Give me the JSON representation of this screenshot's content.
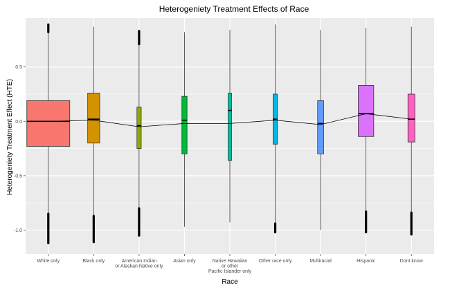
{
  "chart_data": {
    "type": "box",
    "title": "Heterogeniety Treatment Effects of Race",
    "xlabel": "Race",
    "ylabel": "Heterogeniety Treatment Effect (HTE)",
    "ylim": [
      -1.22,
      0.95
    ],
    "yticks": [
      0.5,
      0.0,
      -0.5,
      -1.0
    ],
    "ytick_labels": [
      "0.5",
      "0.0",
      "-0.5",
      "-1.0"
    ],
    "grid": true,
    "categories": [
      [
        "White only"
      ],
      [
        "Black only"
      ],
      [
        "American Indian",
        "or Alaskan Native only"
      ],
      [
        "Asian only"
      ],
      [
        "Native Hawaiian",
        "or other",
        "Pacific Islander only"
      ],
      [
        "Other race only"
      ],
      [
        "Multiracial"
      ],
      [
        "Hispanic"
      ],
      [
        "Dont know"
      ]
    ],
    "boxes": [
      {
        "whisker_low": -0.85,
        "q1": -0.23,
        "median": 0.0,
        "q3": 0.19,
        "whisker_high": 0.82,
        "mean": 0.0,
        "width": 1.0,
        "color": "#F8766D",
        "outliers_low": [
          -0.85,
          -1.12
        ],
        "outliers_high": [
          0.82,
          0.89
        ]
      },
      {
        "whisker_low": -0.87,
        "q1": -0.2,
        "median": 0.02,
        "q3": 0.26,
        "whisker_high": 0.87,
        "mean": 0.01,
        "width": 0.28,
        "color": "#D39200",
        "outliers_low": [
          -0.87,
          -1.11
        ],
        "outliers_high": []
      },
      {
        "whisker_low": -0.8,
        "q1": -0.25,
        "median": -0.04,
        "q3": 0.13,
        "whisker_high": 0.71,
        "mean": -0.05,
        "width": 0.1,
        "color": "#93AA00",
        "outliers_low": [
          -0.8,
          -1.05
        ],
        "outliers_high": [
          0.71,
          0.83
        ]
      },
      {
        "whisker_low": -0.97,
        "q1": -0.3,
        "median": 0.01,
        "q3": 0.23,
        "whisker_high": 0.82,
        "mean": -0.02,
        "width": 0.12,
        "color": "#00BA38",
        "outliers_low": [],
        "outliers_high": []
      },
      {
        "whisker_low": -0.93,
        "q1": -0.36,
        "median": 0.1,
        "q3": 0.26,
        "whisker_high": 0.84,
        "mean": -0.02,
        "width": 0.06,
        "color": "#00C19F",
        "outliers_low": [],
        "outliers_high": []
      },
      {
        "whisker_low": -0.93,
        "q1": -0.21,
        "median": 0.02,
        "q3": 0.25,
        "whisker_high": 0.89,
        "mean": 0.01,
        "width": 0.1,
        "color": "#00B9E3",
        "outliers_low": [
          -0.94,
          -1.02
        ],
        "outliers_high": []
      },
      {
        "whisker_low": -1.0,
        "q1": -0.3,
        "median": -0.02,
        "q3": 0.19,
        "whisker_high": 0.84,
        "mean": -0.03,
        "width": 0.14,
        "color": "#619CFF",
        "outliers_low": [],
        "outliers_high": []
      },
      {
        "whisker_low": -0.83,
        "q1": -0.14,
        "median": 0.07,
        "q3": 0.33,
        "whisker_high": 0.86,
        "mean": 0.07,
        "width": 0.36,
        "color": "#DB72FB",
        "outliers_low": [
          -0.83,
          -1.02
        ],
        "outliers_high": []
      },
      {
        "whisker_low": -0.84,
        "q1": -0.19,
        "median": 0.02,
        "q3": 0.25,
        "whisker_high": 0.87,
        "mean": 0.02,
        "width": 0.16,
        "color": "#FF61C3",
        "outliers_low": [
          -0.84,
          -1.04
        ],
        "outliers_high": []
      }
    ],
    "mean_line_color": "#000000",
    "panel_background": "#EBEBEB",
    "gridline_color": "#FFFFFF"
  }
}
